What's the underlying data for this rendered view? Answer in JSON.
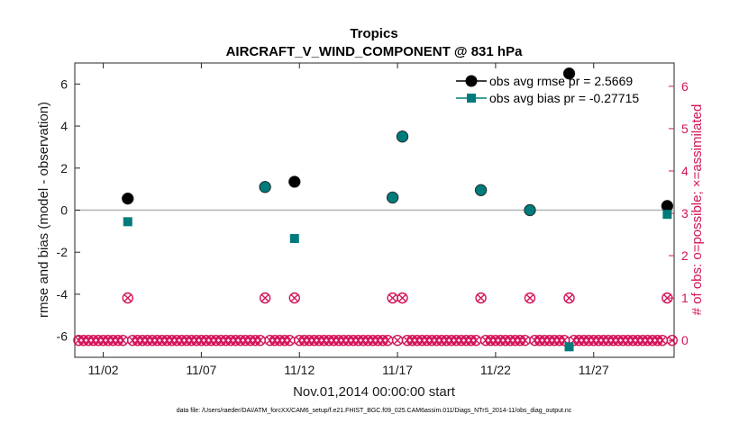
{
  "chart_data": {
    "type": "scatter",
    "title": "Tropics",
    "subtitle": "AIRCRAFT_V_WIND_COMPONENT @ 831 hPa",
    "xlabel": "Nov.01,2014 00:00:00 start",
    "ylabel": "rmse and bias (model - observation)",
    "ylabel_right": "# of obs: o=possible; ×=assimilated",
    "xlim": [
      0.55,
      31.1
    ],
    "ylim": [
      -7,
      7
    ],
    "ylim_right": [
      -0.4,
      6.55
    ],
    "x_ticks": [
      2,
      7,
      12,
      17,
      22,
      27
    ],
    "x_tick_labels": [
      "11/02",
      "11/07",
      "11/12",
      "11/17",
      "11/22",
      "11/27"
    ],
    "y_ticks": [
      -6,
      -4,
      -2,
      0,
      2,
      4,
      6
    ],
    "y_ticks_right": [
      0,
      1,
      2,
      3,
      4,
      5,
      6
    ],
    "zero_line": 0,
    "legend_position": "top-right",
    "series": [
      {
        "name": "obs avg rmse pr = 2.5669",
        "color": "#000000",
        "marker": "circle",
        "x": [
          3.25,
          10.25,
          11.75,
          16.75,
          17.25,
          21.25,
          23.75,
          25.75,
          30.75
        ],
        "y": [
          0.55,
          1.1,
          1.35,
          0.6,
          3.5,
          0.95,
          0.0,
          6.5,
          0.2
        ]
      },
      {
        "name": "obs avg bias pr = -0.27715",
        "color": "#007b7b",
        "marker": "square",
        "x": [
          3.25,
          10.25,
          11.75,
          16.75,
          17.25,
          21.25,
          23.75,
          25.75,
          30.75
        ],
        "y": [
          -0.55,
          1.1,
          -1.35,
          0.6,
          3.5,
          0.95,
          0.0,
          -6.5,
          -0.2
        ]
      },
      {
        "name": "# of obs possible / assimilated",
        "color": "#d4145a",
        "marker": "circle-x",
        "axis": "right",
        "x_start": 0.75,
        "x_step": 0.25,
        "count": 122,
        "ones_at": [
          3.25,
          10.25,
          11.75,
          16.75,
          17.25,
          21.25,
          23.75,
          25.75,
          30.75
        ]
      }
    ],
    "footer": "data file: /Users/raeder/DAI/ATM_forcXX/CAM6_setup/f.e21.FHIST_BGC.f09_025.CAM6assim.011/Diags_NTrS_2014-11/obs_diag_output.nc"
  }
}
